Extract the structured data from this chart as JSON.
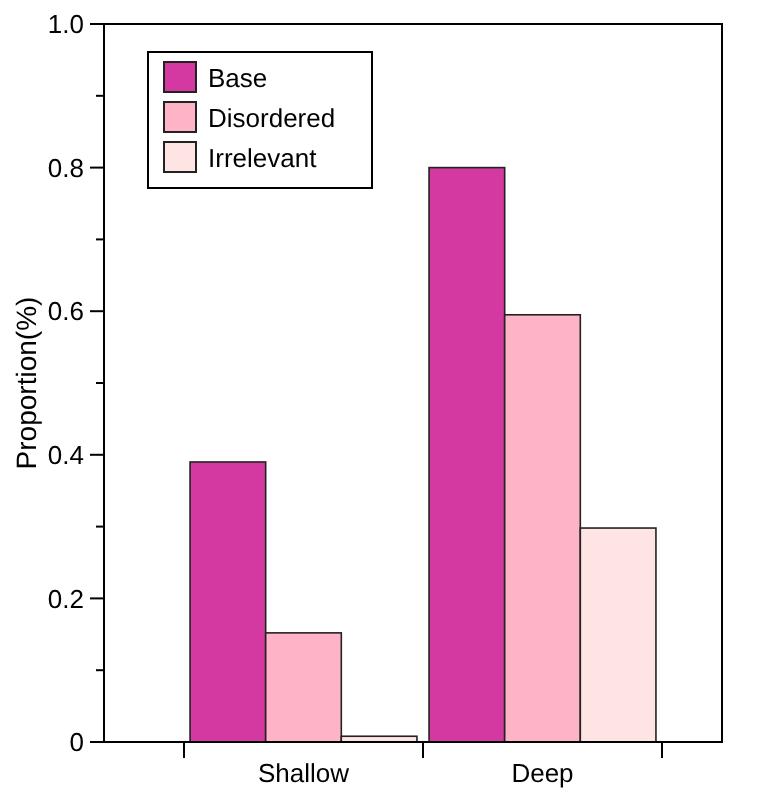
{
  "chart_data": {
    "type": "bar",
    "ylabel": "Proportion(%)",
    "categories": [
      "Shallow",
      "Deep"
    ],
    "series": [
      {
        "name": "Base",
        "color": "#d339a0",
        "values": [
          0.39,
          0.8
        ]
      },
      {
        "name": "Disordered",
        "color": "#ffb3c6",
        "values": [
          0.152,
          0.595
        ]
      },
      {
        "name": "Irrelevant",
        "color": "#ffe4e4",
        "values": [
          0.008,
          0.298
        ]
      }
    ],
    "ylim": [
      0,
      1
    ],
    "yticks": [
      0,
      {
        "value": 0.1,
        "label": null
      },
      0.2,
      {
        "value": 0.3,
        "label": null
      },
      0.4,
      {
        "value": 0.5,
        "label": null
      },
      0.6,
      {
        "value": 0.7,
        "label": null
      },
      0.8,
      {
        "value": 0.9,
        "label": null
      },
      {
        "value": 1,
        "label": "1.0"
      }
    ],
    "grid": false,
    "legend": "top left"
  }
}
